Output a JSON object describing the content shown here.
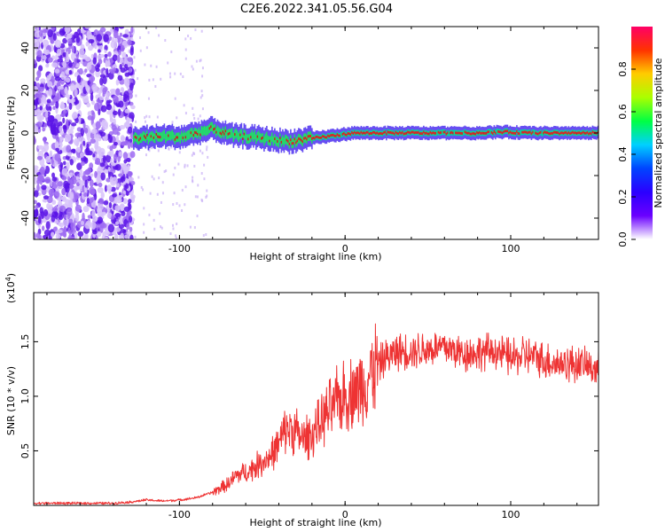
{
  "title": "C2E6.2022.341.05.56.G04",
  "colors": {
    "red": "#ee3333",
    "band_core": "#dd2222",
    "band_edge": "#22dd66",
    "blue": "#3311ee",
    "noise": "#6a1fe0"
  },
  "chart_data": [
    {
      "type": "heatmap",
      "title": "C2E6.2022.341.05.56.G04",
      "xlabel": "Height of straight line (km)",
      "ylabel": "Frequency (Hz)",
      "xlim": [
        -188,
        153
      ],
      "ylim": [
        -50,
        50
      ],
      "xticks": [
        -100,
        0,
        100
      ],
      "xtick_labels": [
        "-100",
        "0",
        "100"
      ],
      "yticks": [
        40,
        20,
        0,
        -20,
        -40
      ],
      "ytick_labels": [
        "40",
        "20",
        "0",
        "-20",
        "-40"
      ],
      "colorbar": {
        "label": "Normalized spectral amplitude",
        "range": [
          0,
          1
        ],
        "ticks": [
          0.0,
          0.2,
          0.4,
          0.6,
          0.8
        ],
        "tick_labels": [
          "0.0",
          "0.2",
          "0.4",
          "0.6",
          "0.8"
        ],
        "stops": [
          "#ffffff",
          "#6a00ff",
          "#2b00ff",
          "#0044ff",
          "#00d0ff",
          "#00ff44",
          "#aaff00",
          "#ffcc00",
          "#ff3300",
          "#ff0066"
        ]
      },
      "noise_region_km": [
        -188,
        -128
      ],
      "center_frequency_track": [
        {
          "x": -128,
          "y": -2.5
        },
        {
          "x": -118,
          "y": -2
        },
        {
          "x": -110,
          "y": -1.5
        },
        {
          "x": -100,
          "y": -2
        },
        {
          "x": -90,
          "y": 0
        },
        {
          "x": -80,
          "y": 2
        },
        {
          "x": -70,
          "y": -1
        },
        {
          "x": -55,
          "y": -2
        },
        {
          "x": -45,
          "y": -3
        },
        {
          "x": -35,
          "y": -4
        },
        {
          "x": -25,
          "y": -3
        },
        {
          "x": -15,
          "y": -2
        },
        {
          "x": -5,
          "y": -1
        },
        {
          "x": 5,
          "y": 0
        },
        {
          "x": 20,
          "y": 0
        },
        {
          "x": 40,
          "y": 0
        },
        {
          "x": 60,
          "y": 0
        },
        {
          "x": 80,
          "y": 0
        },
        {
          "x": 95,
          "y": 0.5
        },
        {
          "x": 110,
          "y": 0
        },
        {
          "x": 130,
          "y": 0
        },
        {
          "x": 153,
          "y": 0
        }
      ]
    },
    {
      "type": "line",
      "xlabel": "Height of straight line (km)",
      "ylabel": "SNR (10 * v/v)",
      "y_scale_note": "(x10^4)",
      "y_scale_base": "(x10",
      "y_scale_exp": "4",
      "y_scale_close": ")",
      "xlim": [
        -188,
        153
      ],
      "ylim": [
        0,
        1.95
      ],
      "xticks": [
        -100,
        0,
        100
      ],
      "xtick_labels": [
        "-100",
        "0",
        "100"
      ],
      "yticks": [
        0.5,
        1.0,
        1.5
      ],
      "ytick_labels": [
        "0.5",
        "1.0",
        "1.5"
      ],
      "series": [
        {
          "name": "SNR",
          "color": "#ee3333",
          "x": [
            -188,
            -160,
            -140,
            -130,
            -120,
            -110,
            -100,
            -90,
            -80,
            -70,
            -65,
            -60,
            -55,
            -50,
            -45,
            -40,
            -35,
            -30,
            -25,
            -20,
            -15,
            -10,
            -5,
            0,
            5,
            10,
            15,
            20,
            25,
            30,
            40,
            50,
            60,
            70,
            80,
            90,
            100,
            110,
            120,
            130,
            140,
            153
          ],
          "values": [
            0.02,
            0.02,
            0.02,
            0.03,
            0.05,
            0.04,
            0.05,
            0.07,
            0.12,
            0.2,
            0.28,
            0.3,
            0.35,
            0.4,
            0.45,
            0.55,
            0.72,
            0.68,
            0.6,
            0.65,
            0.75,
            0.85,
            0.95,
            1.0,
            1.05,
            1.1,
            1.2,
            1.3,
            1.35,
            1.4,
            1.42,
            1.43,
            1.45,
            1.4,
            1.4,
            1.42,
            1.35,
            1.38,
            1.33,
            1.3,
            1.3,
            1.25
          ]
        }
      ]
    }
  ]
}
